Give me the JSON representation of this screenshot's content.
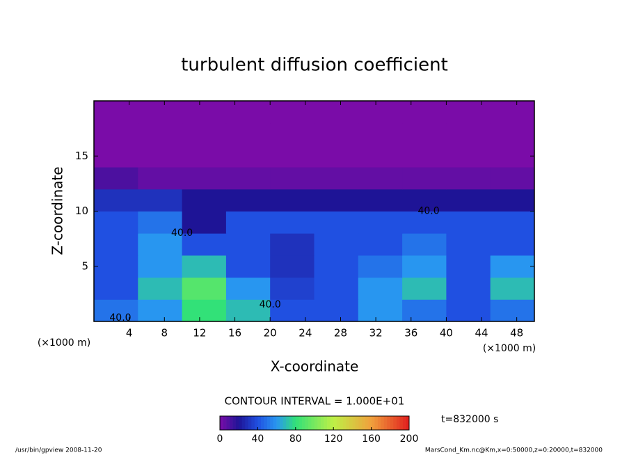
{
  "chart_data": {
    "type": "heatmap",
    "title": "turbulent diffusion coefficient",
    "x_label": "X-coordinate",
    "y_label": "Z-coordinate",
    "x_unit": "(×1000 m)",
    "y_unit": "(×1000 m)",
    "xlim": [
      0,
      50
    ],
    "ylim": [
      0,
      20
    ],
    "xticks": [
      4,
      8,
      12,
      16,
      20,
      24,
      28,
      32,
      36,
      40,
      44,
      48
    ],
    "yticks": [
      5,
      10,
      15
    ],
    "x": [
      2.5,
      7.5,
      12.5,
      17.5,
      22.5,
      27.5,
      32.5,
      37.5,
      42.5,
      47.5
    ],
    "y": [
      1,
      3,
      5,
      7,
      9,
      11,
      13,
      15,
      17,
      19
    ],
    "values": [
      [
        50,
        60,
        80,
        70,
        40,
        40,
        60,
        50,
        40,
        50
      ],
      [
        40,
        70,
        90,
        60,
        35,
        40,
        60,
        70,
        40,
        70
      ],
      [
        40,
        60,
        70,
        40,
        30,
        40,
        50,
        60,
        40,
        60
      ],
      [
        40,
        60,
        40,
        40,
        30,
        40,
        40,
        50,
        40,
        40
      ],
      [
        40,
        50,
        20,
        40,
        40,
        40,
        40,
        40,
        40,
        40
      ],
      [
        30,
        30,
        20,
        20,
        20,
        20,
        20,
        20,
        20,
        20
      ],
      [
        10,
        5,
        5,
        5,
        5,
        5,
        5,
        5,
        5,
        5
      ],
      [
        0,
        0,
        0,
        0,
        0,
        0,
        0,
        0,
        0,
        0
      ],
      [
        0,
        0,
        0,
        0,
        0,
        0,
        0,
        0,
        0,
        0
      ],
      [
        0,
        0,
        0,
        0,
        0,
        0,
        0,
        0,
        0,
        0
      ]
    ],
    "contour_labels": [
      "40.0",
      "40.0",
      "40.0",
      "40.0"
    ],
    "contour_interval": "CONTOUR INTERVAL = 1.000E+01",
    "colorbar": {
      "lim": [
        0,
        200
      ],
      "ticks": [
        0,
        40,
        80,
        120,
        160,
        200
      ]
    },
    "time_label": "t=832000 s",
    "footer_left": "/usr/bin/gpview  2008-11-20",
    "footer_right": "MarsCond_Km.nc@Km,x=0:50000,z=0:20000,t=832000"
  }
}
